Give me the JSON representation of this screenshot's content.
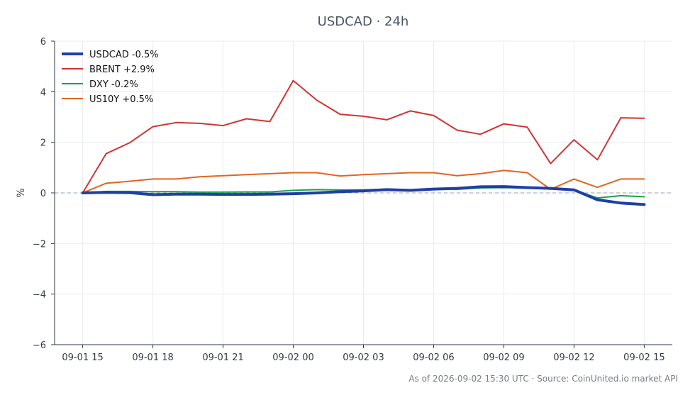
{
  "chart_data": {
    "type": "line",
    "title": "USDCAD · 24h",
    "xlabel": "",
    "ylabel": "%",
    "ylim": [
      -6,
      6
    ],
    "yticks": [
      -6,
      -4,
      -2,
      0,
      2,
      4,
      6
    ],
    "ytick_labels": [
      "−6",
      "−4",
      "−2",
      "0",
      "2",
      "4",
      "6"
    ],
    "xlim": [
      -1.2,
      25.2
    ],
    "xticks": [
      0,
      3,
      6,
      9,
      12,
      15,
      18,
      21,
      24
    ],
    "xtick_labels": [
      "09-01 15",
      "09-01 18",
      "09-01 21",
      "09-02 00",
      "09-02 03",
      "09-02 06",
      "09-02 09",
      "09-02 12",
      "09-02 15"
    ],
    "grid": true,
    "legend_position": "top-left",
    "zero_line": true,
    "x": [
      0,
      1,
      2,
      3,
      4,
      5,
      6,
      7,
      8,
      9,
      10,
      11,
      12,
      13,
      14,
      15,
      16,
      17,
      18,
      19,
      20,
      21,
      22,
      23,
      24
    ],
    "series": [
      {
        "name": "USDCAD -0.5%",
        "color": "#1f3fa6",
        "width": 4,
        "values": [
          0.0,
          0.02,
          0.01,
          -0.07,
          -0.05,
          -0.05,
          -0.06,
          -0.06,
          -0.05,
          -0.03,
          0.0,
          0.05,
          0.08,
          0.13,
          0.1,
          0.15,
          0.18,
          0.24,
          0.25,
          0.21,
          0.18,
          0.12,
          -0.27,
          -0.4,
          -0.46
        ]
      },
      {
        "name": "BRENT +2.9%",
        "color": "#d13434",
        "width": 2,
        "values": [
          0.0,
          1.55,
          1.98,
          2.62,
          2.78,
          2.75,
          2.66,
          2.93,
          2.82,
          4.44,
          3.67,
          3.11,
          3.03,
          2.89,
          3.24,
          3.06,
          2.48,
          2.32,
          2.73,
          2.6,
          1.16,
          2.1,
          1.31,
          2.97,
          2.95
        ]
      },
      {
        "name": "DXY -0.2%",
        "color": "#1aa34a",
        "width": 2,
        "values": [
          0.0,
          0.06,
          0.06,
          0.05,
          0.05,
          0.03,
          0.03,
          0.04,
          0.04,
          0.1,
          0.13,
          0.12,
          0.12,
          0.15,
          0.09,
          0.16,
          0.14,
          0.2,
          0.21,
          0.2,
          0.17,
          0.11,
          -0.2,
          -0.11,
          -0.15
        ]
      },
      {
        "name": "US10Y +0.5%",
        "color": "#e0661e",
        "width": 2,
        "values": [
          0.0,
          0.38,
          0.46,
          0.55,
          0.55,
          0.64,
          0.68,
          0.72,
          0.76,
          0.8,
          0.8,
          0.67,
          0.72,
          0.76,
          0.8,
          0.8,
          0.68,
          0.76,
          0.89,
          0.8,
          0.14,
          0.55,
          0.22,
          0.55,
          0.55
        ]
      }
    ]
  },
  "footer": "As of 2026-09-02 15:30 UTC · Source: CoinUnited.io market API"
}
